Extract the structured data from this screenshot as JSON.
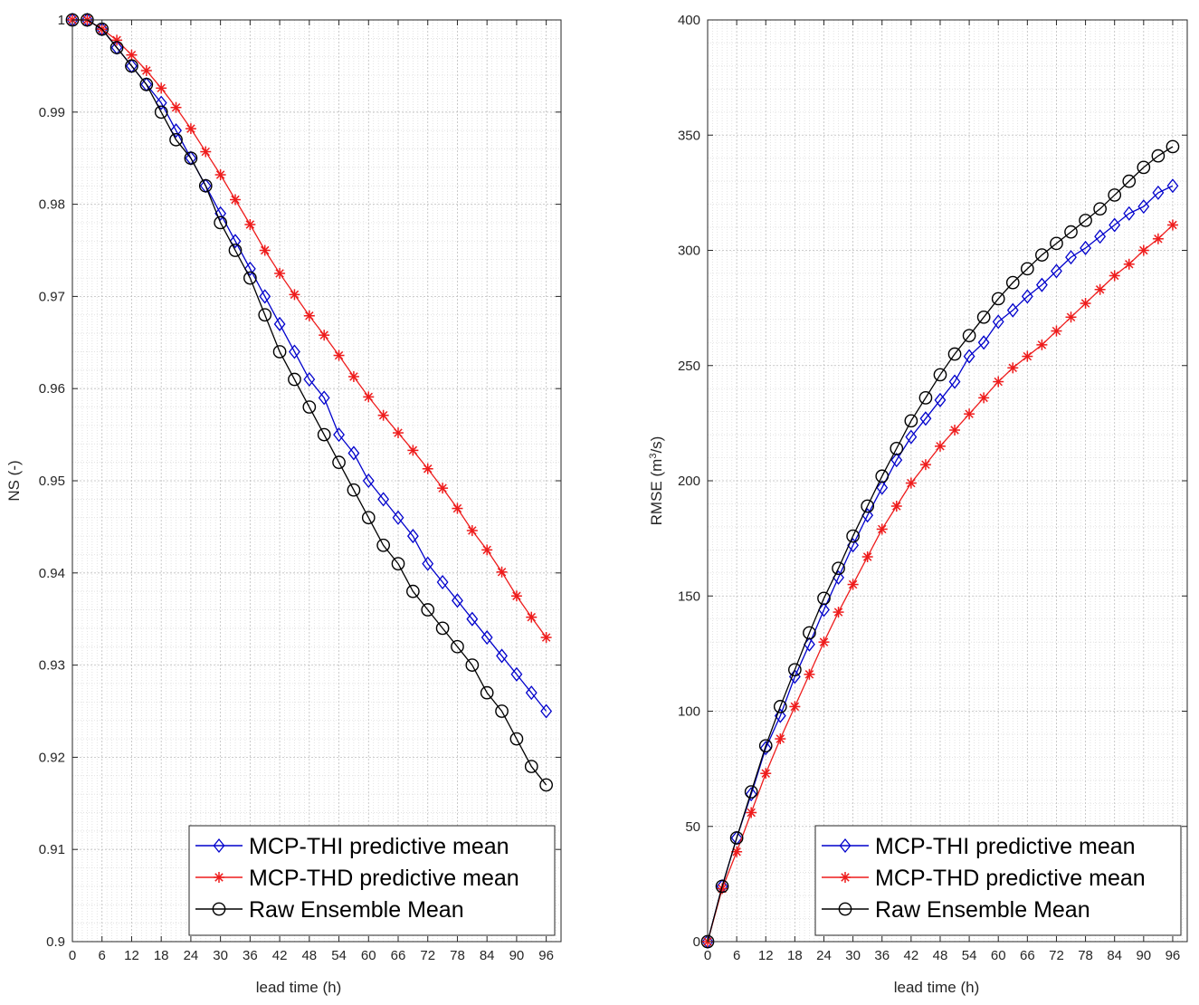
{
  "chart_data": [
    {
      "type": "line",
      "title": "",
      "xlabel": "lead time (h)",
      "ylabel": "NS (-)",
      "xlim": [
        0,
        99
      ],
      "ylim": [
        0.9,
        1.0
      ],
      "xticks": [
        0,
        6,
        12,
        18,
        24,
        30,
        36,
        42,
        48,
        54,
        60,
        66,
        72,
        78,
        84,
        90,
        96
      ],
      "yticks": [
        0.9,
        0.91,
        0.92,
        0.93,
        0.94,
        0.95,
        0.96,
        0.97,
        0.98,
        0.99,
        1.0
      ],
      "ytick_labels": [
        "0.9",
        "0.91",
        "0.92",
        "0.93",
        "0.94",
        "0.95",
        "0.96",
        "0.97",
        "0.98",
        "0.99",
        "1"
      ],
      "grid": true,
      "legend_position": "bottom-right",
      "x": [
        0,
        3,
        6,
        9,
        12,
        15,
        18,
        21,
        24,
        27,
        30,
        33,
        36,
        39,
        42,
        45,
        48,
        51,
        54,
        57,
        60,
        63,
        66,
        69,
        72,
        75,
        78,
        81,
        84,
        87,
        90,
        93,
        96
      ],
      "series": [
        {
          "name": "MCP-THI predictive mean",
          "color": "#0000cc",
          "marker": "diamond",
          "values": [
            1.0,
            1.0,
            0.999,
            0.997,
            0.995,
            0.993,
            0.991,
            0.988,
            0.985,
            0.982,
            0.979,
            0.976,
            0.973,
            0.97,
            0.967,
            0.964,
            0.961,
            0.959,
            0.955,
            0.953,
            0.95,
            0.948,
            0.946,
            0.944,
            0.941,
            0.939,
            0.937,
            0.935,
            0.933,
            0.931,
            0.929,
            0.927,
            0.925
          ]
        },
        {
          "name": "MCP-THD predictive mean",
          "color": "#ee1c1c",
          "marker": "asterisk",
          "values": [
            1.0,
            1.0,
            0.999,
            0.9978,
            0.9962,
            0.9945,
            0.9926,
            0.9905,
            0.9882,
            0.9857,
            0.9832,
            0.9805,
            0.9778,
            0.975,
            0.9725,
            0.9702,
            0.9679,
            0.9658,
            0.9636,
            0.9613,
            0.9591,
            0.9571,
            0.9552,
            0.9533,
            0.9513,
            0.9492,
            0.947,
            0.9446,
            0.9425,
            0.9401,
            0.9375,
            0.9352,
            0.933
          ]
        },
        {
          "name": "Raw Ensemble Mean",
          "color": "#000000",
          "marker": "circle",
          "values": [
            1.0,
            1.0,
            0.999,
            0.997,
            0.995,
            0.993,
            0.99,
            0.987,
            0.985,
            0.982,
            0.978,
            0.975,
            0.972,
            0.968,
            0.964,
            0.961,
            0.958,
            0.955,
            0.952,
            0.949,
            0.946,
            0.943,
            0.941,
            0.938,
            0.936,
            0.934,
            0.932,
            0.93,
            0.927,
            0.925,
            0.922,
            0.919,
            0.917
          ]
        }
      ]
    },
    {
      "type": "line",
      "title": "",
      "xlabel": "lead time (h)",
      "ylabel": "RMSE (m³/s)",
      "ylabel_main": "RMSE (m",
      "ylabel_sup": "3",
      "ylabel_tail": "/s)",
      "xlim": [
        0,
        99
      ],
      "ylim": [
        0,
        400
      ],
      "xticks": [
        0,
        6,
        12,
        18,
        24,
        30,
        36,
        42,
        48,
        54,
        60,
        66,
        72,
        78,
        84,
        90,
        96
      ],
      "yticks": [
        0,
        50,
        100,
        150,
        200,
        250,
        300,
        350,
        400
      ],
      "ytick_labels": [
        "0",
        "50",
        "100",
        "150",
        "200",
        "250",
        "300",
        "350",
        "400"
      ],
      "grid": true,
      "legend_position": "bottom-right",
      "x": [
        0,
        3,
        6,
        9,
        12,
        15,
        18,
        21,
        24,
        27,
        30,
        33,
        36,
        39,
        42,
        45,
        48,
        51,
        54,
        57,
        60,
        63,
        66,
        69,
        72,
        75,
        78,
        81,
        84,
        87,
        90,
        93,
        96
      ],
      "series": [
        {
          "name": "MCP-THI predictive mean",
          "color": "#0000cc",
          "marker": "diamond",
          "values": [
            0,
            24,
            45,
            64,
            84,
            98,
            115,
            129,
            144,
            158,
            172,
            185,
            197,
            209,
            219,
            227,
            235,
            243,
            254,
            260,
            269,
            274,
            280,
            285,
            291,
            297,
            301,
            306,
            311,
            316,
            319,
            325,
            328
          ]
        },
        {
          "name": "MCP-THD predictive mean",
          "color": "#ee1c1c",
          "marker": "asterisk",
          "values": [
            0,
            23,
            39,
            56,
            73,
            88,
            102,
            116,
            130,
            143,
            155,
            167,
            179,
            189,
            199,
            207,
            215,
            222,
            229,
            236,
            243,
            249,
            254,
            259,
            265,
            271,
            277,
            283,
            289,
            294,
            300,
            305,
            311
          ]
        },
        {
          "name": "Raw Ensemble Mean",
          "color": "#000000",
          "marker": "circle",
          "values": [
            0,
            24,
            45,
            65,
            85,
            102,
            118,
            134,
            149,
            162,
            176,
            189,
            202,
            214,
            226,
            236,
            246,
            255,
            263,
            271,
            279,
            286,
            292,
            298,
            303,
            308,
            313,
            318,
            324,
            330,
            336,
            341,
            345
          ]
        }
      ]
    }
  ]
}
